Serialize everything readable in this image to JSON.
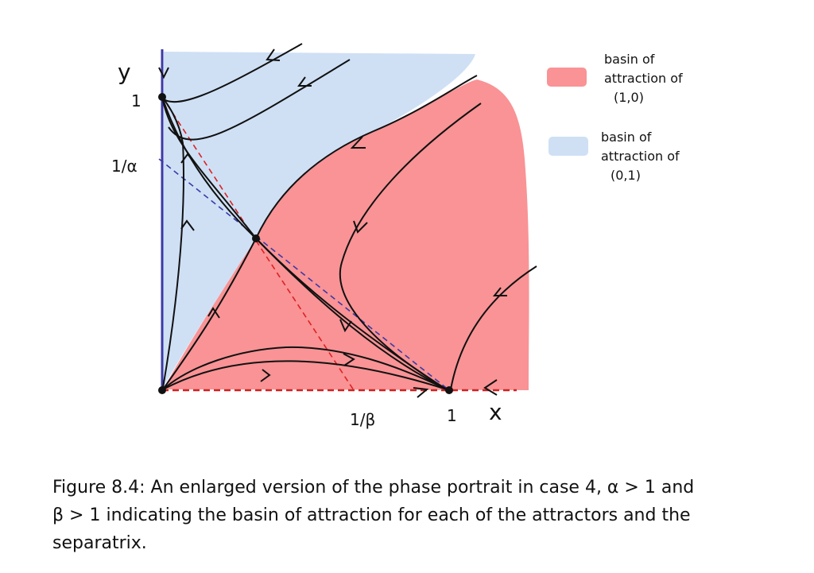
{
  "figure": {
    "axis_labels": {
      "y": "y",
      "x": "x"
    },
    "tick_labels": {
      "y_one": "1",
      "y_inv_alpha": "1/α",
      "x_inv_beta": "1/β",
      "x_one": "1"
    },
    "legend": [
      {
        "lines": [
          "basin of",
          "attraction of",
          "(1,0)"
        ]
      },
      {
        "lines": [
          "basin of",
          "attraction of",
          "(0,1)"
        ]
      }
    ]
  },
  "caption": {
    "lines": [
      "Figure 8.4: An enlarged version of the phase portrait in case 4, α > 1 and",
      "β > 1 indicating the basin of attraction for each of the attractors and the",
      "separatrix."
    ]
  }
}
